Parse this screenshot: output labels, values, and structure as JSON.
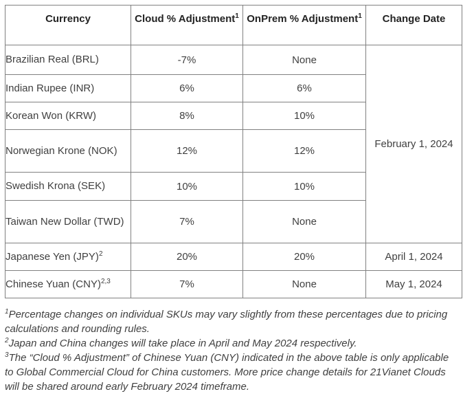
{
  "table": {
    "headers": [
      {
        "label": "Currency",
        "sup": ""
      },
      {
        "label": "Cloud % Adjustment",
        "sup": "1"
      },
      {
        "label": "OnPrem % Adjustment",
        "sup": "1"
      },
      {
        "label": "Change Date",
        "sup": ""
      }
    ],
    "date_merge": {
      "label": "February 1, 2024",
      "rows": 6
    },
    "rows": [
      {
        "currency": "Brazilian Real (BRL)",
        "sup": "",
        "cloud": "-7%",
        "onprem": "None",
        "date": null
      },
      {
        "currency": "Indian Rupee (INR)",
        "sup": "",
        "cloud": "6%",
        "onprem": "6%",
        "date": null
      },
      {
        "currency": "Korean Won (KRW)",
        "sup": "",
        "cloud": "8%",
        "onprem": "10%",
        "date": null
      },
      {
        "currency": "Norwegian Krone (NOK)",
        "sup": "",
        "cloud": "12%",
        "onprem": "12%",
        "date": null
      },
      {
        "currency": "Swedish Krona (SEK)",
        "sup": "",
        "cloud": "10%",
        "onprem": "10%",
        "date": null
      },
      {
        "currency": "Taiwan New Dollar (TWD)",
        "sup": "",
        "cloud": "7%",
        "onprem": "None",
        "date": null
      },
      {
        "currency": "Japanese Yen (JPY)",
        "sup": "2",
        "cloud": "20%",
        "onprem": "20%",
        "date": "April 1, 2024"
      },
      {
        "currency": "Chinese Yuan (CNY)",
        "sup": "2,3",
        "cloud": "7%",
        "onprem": "None",
        "date": "May 1, 2024"
      }
    ]
  },
  "footnotes": [
    {
      "sup": "1",
      "text": "Percentage changes on individual SKUs may vary slightly from these percentages due to pricing calculations and rounding rules."
    },
    {
      "sup": "2",
      "text": "Japan and China changes will take place in April and May 2024 respectively."
    },
    {
      "sup": "3",
      "text": "The “Cloud % Adjustment” of Chinese Yuan (CNY) indicated in the above table is only applicable to Global Commercial Cloud for China customers. More price change details for 21Vianet Clouds will be shared around early February 2024 timeframe."
    }
  ]
}
